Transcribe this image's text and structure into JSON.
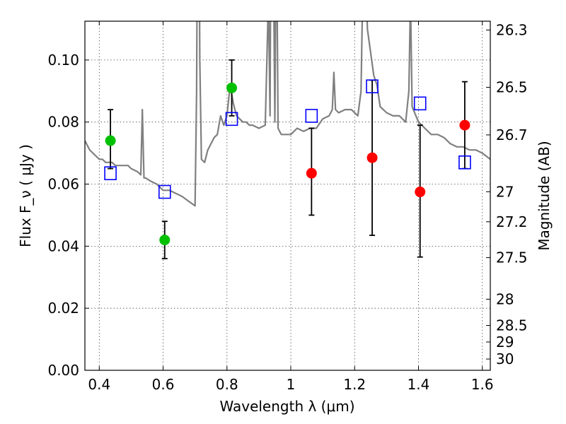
{
  "chart_data": {
    "type": "scatter",
    "xlabel": "Wavelength λ (μm)",
    "ylabel": "Flux F_ν ( μJy )",
    "y2label": "Magnitude (AB)",
    "xlim": [
      0.355,
      1.625
    ],
    "ylim": [
      0.0,
      0.1125
    ],
    "grid": true,
    "x_ticks": [
      0.4,
      0.6,
      0.8,
      1.0,
      1.2,
      1.4,
      1.6
    ],
    "x_tick_labels": [
      "0.4",
      "0.6",
      "0.8",
      "1",
      "1.2",
      "1.4",
      "1.6"
    ],
    "y_ticks": [
      0.0,
      0.02,
      0.04,
      0.06,
      0.08,
      0.1
    ],
    "y_tick_labels": [
      "0.00",
      "0.02",
      "0.04",
      "0.06",
      "0.08",
      "0.10"
    ],
    "y2_tick_labels": [
      "26.3",
      "26.5",
      "26.7",
      "27",
      "27.2",
      "27.5",
      "28",
      "28.5",
      "29",
      "30"
    ],
    "colors": {
      "model": "#808080",
      "green": "#00c000",
      "red": "#ff0000",
      "square": "#0000ff",
      "errorbar": "#000000"
    },
    "series": [
      {
        "style": "gray line",
        "x": [
          0.355,
          0.37,
          0.38,
          0.39,
          0.4,
          0.41,
          0.42,
          0.43,
          0.44,
          0.45,
          0.47,
          0.49,
          0.5,
          0.52,
          0.53,
          0.535,
          0.54,
          0.545,
          0.56,
          0.58,
          0.6,
          0.62,
          0.64,
          0.66,
          0.68,
          0.7,
          0.705,
          0.71,
          0.715,
          0.72,
          0.73,
          0.74,
          0.75,
          0.76,
          0.77,
          0.78,
          0.79,
          0.8,
          0.81,
          0.82,
          0.83,
          0.84,
          0.85,
          0.86,
          0.87,
          0.88,
          0.9,
          0.92,
          0.93,
          0.935,
          0.94,
          0.95,
          0.955,
          0.96,
          0.97,
          1.0,
          1.02,
          1.04,
          1.06,
          1.08,
          1.1,
          1.12,
          1.13,
          1.135,
          1.14,
          1.15,
          1.17,
          1.19,
          1.21,
          1.22,
          1.225,
          1.23,
          1.24,
          1.26,
          1.27,
          1.28,
          1.3,
          1.32,
          1.34,
          1.36,
          1.37,
          1.375,
          1.38,
          1.4,
          1.42,
          1.44,
          1.46,
          1.48,
          1.5,
          1.52,
          1.54,
          1.56,
          1.58,
          1.6,
          1.625
        ],
        "y": [
          0.074,
          0.071,
          0.07,
          0.069,
          0.068,
          0.068,
          0.067,
          0.067,
          0.067,
          0.066,
          0.066,
          0.066,
          0.065,
          0.064,
          0.063,
          0.084,
          0.062,
          0.062,
          0.061,
          0.06,
          0.058,
          0.058,
          0.057,
          0.056,
          0.0545,
          0.053,
          0.09,
          0.2,
          0.1,
          0.068,
          0.067,
          0.071,
          0.073,
          0.075,
          0.076,
          0.082,
          0.079,
          0.082,
          0.092,
          0.086,
          0.082,
          0.081,
          0.08,
          0.08,
          0.079,
          0.079,
          0.078,
          0.079,
          0.12,
          0.082,
          0.2,
          0.08,
          0.15,
          0.078,
          0.076,
          0.076,
          0.078,
          0.077,
          0.078,
          0.078,
          0.081,
          0.082,
          0.084,
          0.096,
          0.084,
          0.083,
          0.084,
          0.084,
          0.082,
          0.09,
          0.12,
          0.15,
          0.11,
          0.095,
          0.092,
          0.085,
          0.083,
          0.082,
          0.082,
          0.08,
          0.09,
          0.12,
          0.085,
          0.08,
          0.078,
          0.076,
          0.076,
          0.075,
          0.073,
          0.072,
          0.072,
          0.071,
          0.071,
          0.07,
          0.068
        ]
      },
      {
        "style": "green circles",
        "x": [
          0.435,
          0.605,
          0.815
        ],
        "y": [
          0.074,
          0.042,
          0.091
        ],
        "yerr_low": [
          0.065,
          0.036,
          0.082
        ],
        "yerr_high": [
          0.084,
          0.048,
          0.1
        ]
      },
      {
        "style": "red circles",
        "x": [
          1.065,
          1.255,
          1.405,
          1.545
        ],
        "y": [
          0.0635,
          0.0685,
          0.0575,
          0.079
        ],
        "yerr_low": [
          0.05,
          0.0435,
          0.0365,
          0.065
        ],
        "yerr_high": [
          0.078,
          0.0935,
          0.079,
          0.093
        ]
      },
      {
        "style": "blue open squares",
        "x": [
          0.435,
          0.605,
          0.815,
          1.065,
          1.255,
          1.405,
          1.545
        ],
        "y": [
          0.0635,
          0.0575,
          0.081,
          0.082,
          0.0915,
          0.086,
          0.067
        ]
      }
    ]
  }
}
